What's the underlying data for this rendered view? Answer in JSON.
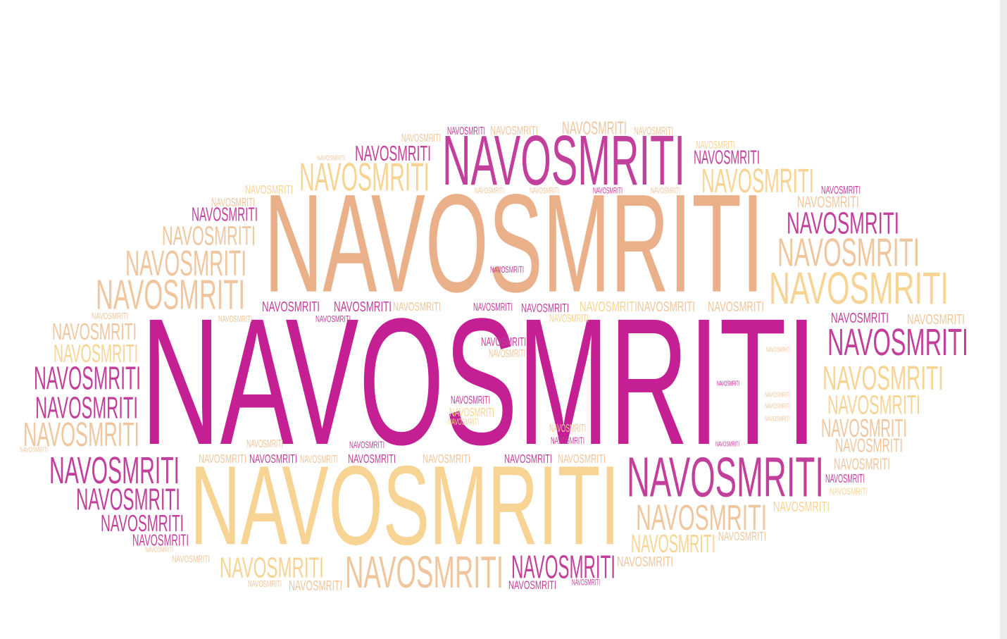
{
  "word": "NAVOSMRITI",
  "palette": {
    "magenta": "#c41f93",
    "orchid": "#c2409c",
    "pink": "#c954a8",
    "peach": "#e9b08a",
    "tan": "#f0c69e",
    "yellow": "#f7d493"
  },
  "cloud": {
    "shape": "ellipse",
    "word_count": 150
  }
}
